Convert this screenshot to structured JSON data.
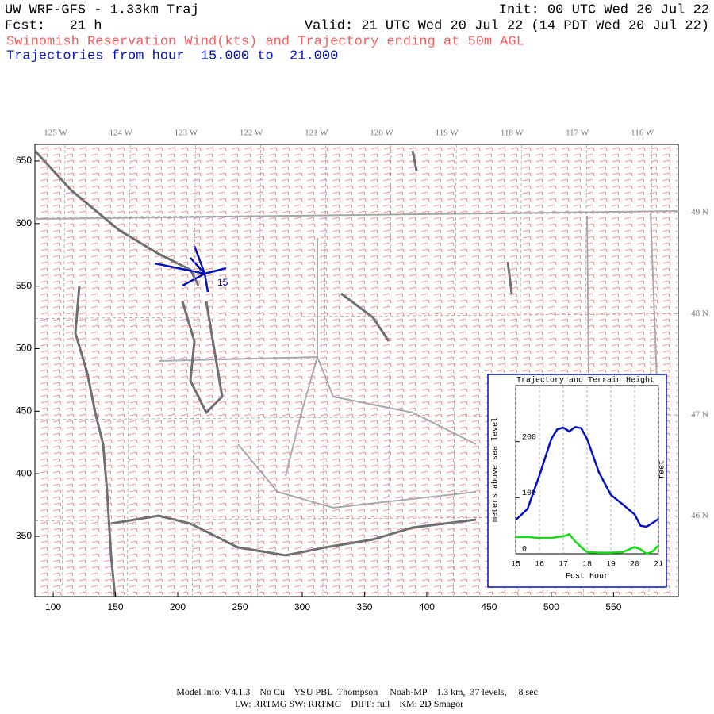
{
  "header": {
    "title": "UW WRF-GFS - 1.33km Traj",
    "init": "Init: 00 UTC Wed 20 Jul 22",
    "fcst": "Fcst:   21 h",
    "valid": "Valid: 21 UTC Wed 20 Jul 22 (14 PDT Wed 20 Jul 22)",
    "subtitle": "Swinomish Reservation Wind(kts) and Trajectory ending at 50m AGL",
    "trajectory_hours": "Trajectories from hour  15.000 to  21.000"
  },
  "map": {
    "xlim": [
      85.3,
      602
    ],
    "ylim": [
      301.8,
      663.3
    ],
    "xticks": [
      100,
      150,
      200,
      250,
      300,
      350,
      400,
      450,
      500,
      550
    ],
    "yticks": [
      350,
      400,
      450,
      500,
      550,
      600,
      650
    ],
    "lon_labels": [
      "125 W",
      "124 W",
      "123 W",
      "122 W",
      "121 W",
      "120 W",
      "119 W",
      "118 W",
      "117 W",
      "116 W"
    ],
    "lat_labels": [
      "49 N",
      "48 N",
      "47 N",
      "46 N"
    ],
    "site_label": "15"
  },
  "chart_data": {
    "type": "line",
    "title": "Trajectory and Terrain Height",
    "xlabel": "Fcst Hour",
    "ylabel": "meters above sea level",
    "y2label": "feet",
    "x": [
      15,
      15.5,
      16,
      16.5,
      16.75,
      17,
      17.25,
      17.5,
      17.75,
      18,
      18.5,
      19,
      19.5,
      20,
      20.25,
      20.5,
      20.75,
      21
    ],
    "series": [
      {
        "color": "#0010c0",
        "values": [
          60,
          80,
          140,
          205,
          222,
          225,
          218,
          226,
          224,
          205,
          145,
          105,
          88,
          70,
          50,
          48,
          55,
          62
        ]
      },
      {
        "color": "#10e010",
        "values": [
          30,
          30,
          28,
          28,
          30,
          31,
          35,
          22,
          12,
          3,
          2,
          2,
          3,
          12,
          8,
          0,
          4,
          15
        ]
      }
    ],
    "xlim": [
      15,
      21
    ],
    "ylim": [
      0,
      300
    ],
    "xticks": [
      15,
      16,
      17,
      18,
      19,
      20,
      21
    ],
    "yticks": [
      0,
      100,
      200
    ],
    "grid": true
  },
  "footer": {
    "line1": "Model Info: V4.1.3    No Cu    YSU PBL  Thompson     Noah-MP    1.3 km,  37 levels,     8 sec",
    "line2": "LW: RRTMG SW: RRTMG    DIFF: full    KM: 2D Smagor"
  }
}
